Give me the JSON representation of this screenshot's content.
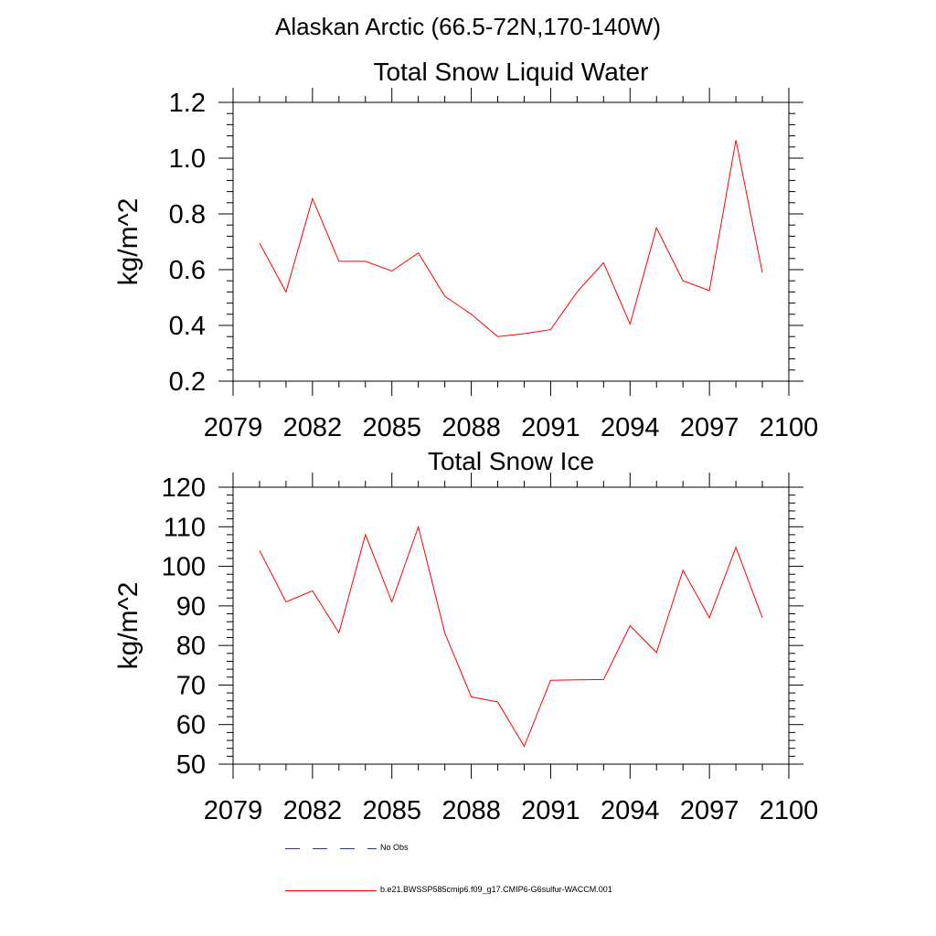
{
  "page_title": "Alaskan Arctic (66.5-72N,170-140W)",
  "chart_data": [
    {
      "type": "line",
      "title": "Total Snow Liquid Water",
      "xlabel": "",
      "ylabel": "kg/m^2",
      "xlim": [
        2079,
        2100
      ],
      "ylim": [
        0.2,
        1.2
      ],
      "xticks": [
        2079,
        2082,
        2085,
        2088,
        2091,
        2094,
        2097,
        2100
      ],
      "xtick_labels": [
        "2079",
        "2082",
        "2085",
        "2088",
        "2091",
        "2094",
        "2097",
        "2100"
      ],
      "yticks": [
        0.2,
        0.4,
        0.6,
        0.8,
        1.0,
        1.2
      ],
      "ytick_labels": [
        "0.2",
        "0.4",
        "0.6",
        "0.8",
        "1.0",
        "1.2"
      ],
      "x": [
        2080,
        2081,
        2082,
        2083,
        2084,
        2085,
        2086,
        2087,
        2088,
        2089,
        2090,
        2091,
        2092,
        2093,
        2094,
        2095,
        2096,
        2097,
        2098,
        2099
      ],
      "series": [
        {
          "name": "b.e21.BWSSP585cmip6.f09_g17.CMIP6-G6sulfur-WACCM.001",
          "color": "#ff0000",
          "values": [
            0.695,
            0.52,
            0.855,
            0.63,
            0.63,
            0.595,
            0.66,
            0.505,
            0.44,
            0.36,
            0.37,
            0.385,
            0.52,
            0.625,
            0.405,
            0.75,
            0.56,
            0.525,
            1.065,
            0.59
          ]
        }
      ],
      "grid": false
    },
    {
      "type": "line",
      "title": "Total Snow Ice",
      "xlabel": "",
      "ylabel": "kg/m^2",
      "xlim": [
        2079,
        2100
      ],
      "ylim": [
        50,
        120
      ],
      "xticks": [
        2079,
        2082,
        2085,
        2088,
        2091,
        2094,
        2097,
        2100
      ],
      "xtick_labels": [
        "2079",
        "2082",
        "2085",
        "2088",
        "2091",
        "2094",
        "2097",
        "2100"
      ],
      "yticks": [
        50,
        60,
        70,
        80,
        90,
        100,
        110,
        120
      ],
      "ytick_labels": [
        "50",
        "60",
        "70",
        "80",
        "90",
        "100",
        "110",
        "120"
      ],
      "x": [
        2080,
        2081,
        2082,
        2083,
        2084,
        2085,
        2086,
        2087,
        2088,
        2089,
        2090,
        2091,
        2092,
        2093,
        2094,
        2095,
        2096,
        2097,
        2098,
        2099
      ],
      "series": [
        {
          "name": "b.e21.BWSSP585cmip6.f09_g17.CMIP6-G6sulfur-WACCM.001",
          "color": "#ff0000",
          "values": [
            104,
            91,
            93.8,
            83.2,
            108,
            91,
            110,
            83.2,
            67,
            65.7,
            54.5,
            71.2,
            71.3,
            71.4,
            85,
            78.2,
            99,
            87,
            104.8,
            87
          ]
        }
      ],
      "grid": false
    }
  ],
  "legend": {
    "placement": "bottom-left",
    "items": [
      {
        "label": "No Obs",
        "style": "dashed",
        "color": "#2a3a6e"
      },
      {
        "label": "b.e21.BWSSP585cmip6.f09_g17.CMIP6-G6sulfur-WACCM.001",
        "style": "solid",
        "color": "#ff0000"
      }
    ]
  }
}
